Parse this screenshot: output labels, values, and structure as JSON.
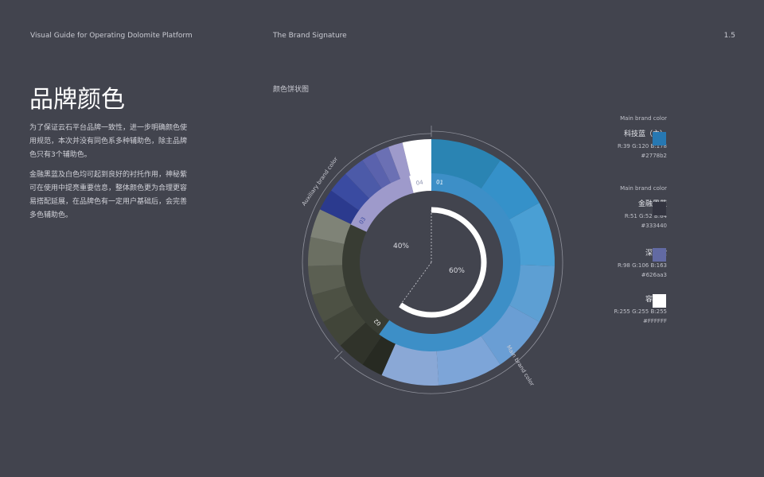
{
  "header": {
    "left": "Visual Guide for Operating Dolomite Platform",
    "center": "The Brand Signature",
    "page": "1.5"
  },
  "title": "品牌颜色",
  "paragraphs": [
    "为了保证云石平台品牌一致性，进一步明确颜色使用规范，本次并没有同色系多种辅助色，除主品牌色只有3个辅助色。",
    "金融黑蓝及白色均可起到良好的衬托作用，神秘紫可在使用中提亮重要信息，整体颜色更为合理更容易搭配延展，在品牌色有一定用户基础后，会完善多色辅助色。"
  ],
  "chart_title": "颜色饼状图",
  "chart_data": {
    "type": "pie",
    "inner_ring": [
      {
        "label": "01",
        "value": 60,
        "color": "#3d8fc7"
      },
      {
        "label": "02",
        "value": 22,
        "color": "#383c33"
      },
      {
        "label": "03",
        "value": 14,
        "color": "#9e9acb"
      },
      {
        "label": "04",
        "value": 4,
        "color": "#ffffff"
      }
    ],
    "outer_ring": [
      {
        "value": 10,
        "color": "#2a84b3"
      },
      {
        "value": 8,
        "color": "#3591c9"
      },
      {
        "value": 9,
        "color": "#4a9fd4"
      },
      {
        "value": 8,
        "color": "#5d9fd3"
      },
      {
        "value": 8,
        "color": "#6a9ed4"
      },
      {
        "value": 9,
        "color": "#7da5d8"
      },
      {
        "value": 8,
        "color": "#8aa8d6"
      },
      {
        "value": 3,
        "color": "#272a22"
      },
      {
        "value": 4,
        "color": "#30332a"
      },
      {
        "value": 4,
        "color": "#414539"
      },
      {
        "value": 4,
        "color": "#4d5144"
      },
      {
        "value": 4,
        "color": "#5b5f52"
      },
      {
        "value": 4,
        "color": "#6b6f62"
      },
      {
        "value": 4,
        "color": "#7f8377"
      },
      {
        "value": 3,
        "color": "#2b3a8e"
      },
      {
        "value": 3,
        "color": "#3a4ba1"
      },
      {
        "value": 3,
        "color": "#4c5aa8"
      },
      {
        "value": 2,
        "color": "#5a62ad"
      },
      {
        "value": 2,
        "color": "#6b70b4"
      },
      {
        "value": 2,
        "color": "#9e9acb"
      },
      {
        "value": 4,
        "color": "#ffffff"
      }
    ],
    "center_percent": 60,
    "center_labels": [
      "40%",
      "60%"
    ],
    "arc_labels": {
      "auxiliary": "Auxiliary brand color",
      "main": "Main brand color"
    }
  },
  "legend": {
    "groups": [
      {
        "head": "Main brand color",
        "items": [
          {
            "name": "科技蓝（主）",
            "rgb": "R:39 G:120 B:178",
            "hex": "#2778b2",
            "color": "#2778b2"
          }
        ]
      },
      {
        "head": "Main brand color",
        "items": [
          {
            "name": "金融黑蓝",
            "rgb": "R:51 G:52 B:64",
            "hex": "#333440",
            "color": "#333440"
          },
          {
            "name": "深沉紫",
            "rgb": "R:98 G:106 B:163",
            "hex": "#626aa3",
            "color": "#626aa3"
          },
          {
            "name": "容器白",
            "rgb": "R:255 G:255 B:255",
            "hex": "#FFFFFF",
            "color": "#ffffff"
          }
        ]
      }
    ]
  }
}
